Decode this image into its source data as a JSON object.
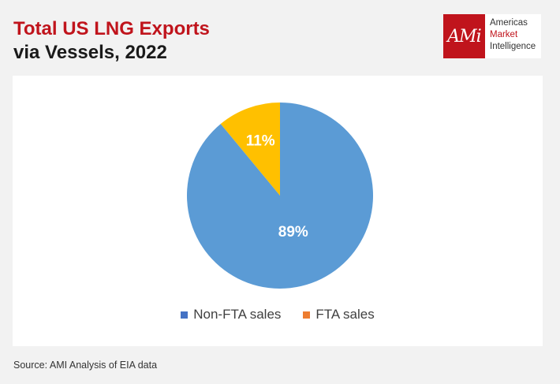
{
  "header": {
    "title_line1": "Total US LNG Exports",
    "title_line2": "via Vessels, 2022"
  },
  "logo": {
    "mark": "AMi",
    "line1": "Americas",
    "line2": "Market",
    "line3": "Intelligence"
  },
  "chart_data": {
    "type": "pie",
    "title": "Total US LNG Exports via Vessels, 2022",
    "slices": [
      {
        "label": "Non-FTA sales",
        "value": 89,
        "display": "89%",
        "color": "#5b9bd5"
      },
      {
        "label": "FTA sales",
        "value": 11,
        "display": "11%",
        "color": "#ffc000"
      }
    ],
    "legend": [
      {
        "label": "Non-FTA sales",
        "color": "#4472c4"
      },
      {
        "label": "FTA sales",
        "color": "#ed7d31"
      }
    ],
    "legend_position": "bottom"
  },
  "footer": {
    "source": "Source: AMI Analysis of EIA data"
  }
}
